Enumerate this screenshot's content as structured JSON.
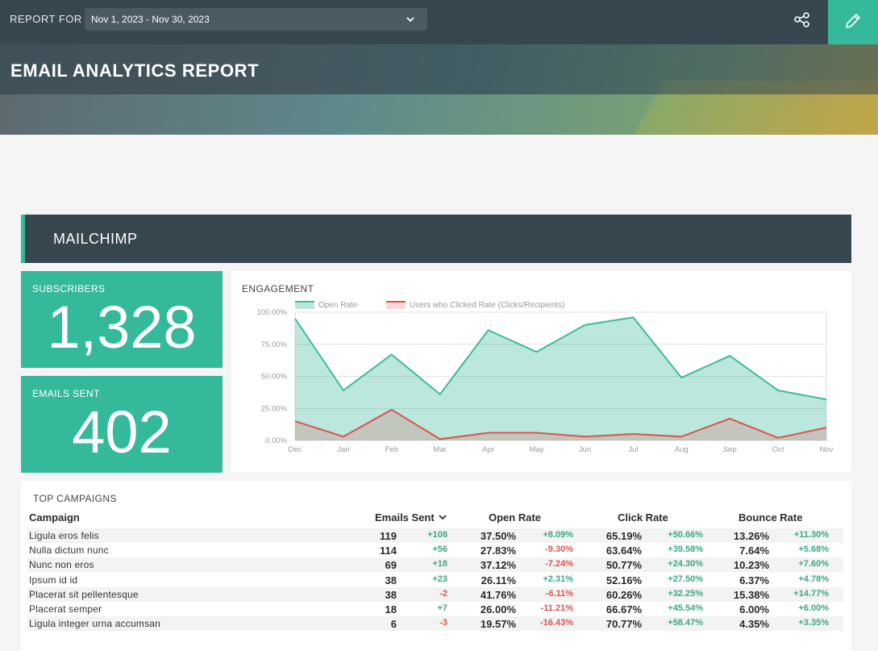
{
  "header": {
    "report_for_label": "REPORT FOR",
    "date_range": "Nov 1, 2023 - Nov 30, 2023",
    "title": "EMAIL ANALYTICS REPORT"
  },
  "section": {
    "title": "MAILCHIMP"
  },
  "kpis": {
    "subscribers": {
      "label": "SUBSCRIBERS",
      "value": "1,328"
    },
    "emails_sent": {
      "label": "EMAILS SENT",
      "value": "402"
    }
  },
  "colors": {
    "accent": "#35b99b",
    "dark": "#364750",
    "series_open": "#3dbb9c",
    "series_click": "#d9534f"
  },
  "engagement": {
    "title": "ENGAGEMENT"
  },
  "chart_data": {
    "type": "area",
    "title": "ENGAGEMENT",
    "categories": [
      "Dec",
      "Jan",
      "Feb",
      "Mar",
      "Apr",
      "May",
      "Jun",
      "Jul",
      "Aug",
      "Sep",
      "Oct",
      "Nov"
    ],
    "y_ticks": [
      "0.00%",
      "25.00%",
      "50.00%",
      "75.00%",
      "100.00%"
    ],
    "ylim": [
      0,
      100
    ],
    "grid": true,
    "legend_position": "top-left",
    "series": [
      {
        "name": "Open Rate",
        "values": [
          95,
          39,
          67,
          36,
          86,
          69,
          90,
          96,
          49,
          66,
          39,
          32
        ]
      },
      {
        "name": "Users who Clicked Rate (Clicks/Recipients)",
        "values": [
          15,
          3,
          24,
          1,
          6,
          6,
          3,
          5,
          3,
          17,
          2,
          10
        ]
      }
    ]
  },
  "campaigns": {
    "title": "TOP CAMPAIGNS",
    "headers": {
      "campaign": "Campaign",
      "emails_sent": "Emails Sent",
      "open_rate": "Open Rate",
      "click_rate": "Click Rate",
      "bounce_rate": "Bounce Rate"
    },
    "rows": [
      {
        "name": "Ligula eros felis",
        "sent": "119",
        "sent_d": "+108",
        "open": "37.50%",
        "open_d": "+8.09%",
        "click": "65.19%",
        "click_d": "+50.66%",
        "bounce": "13.26%",
        "bounce_d": "+11.30%"
      },
      {
        "name": "Nulla dictum nunc",
        "sent": "114",
        "sent_d": "+56",
        "open": "27.83%",
        "open_d": "-9.30%",
        "click": "63.64%",
        "click_d": "+39.58%",
        "bounce": "7.64%",
        "bounce_d": "+5.68%"
      },
      {
        "name": "Nunc non eros",
        "sent": "69",
        "sent_d": "+18",
        "open": "37.12%",
        "open_d": "-7.24%",
        "click": "50.77%",
        "click_d": "+24.30%",
        "bounce": "10.23%",
        "bounce_d": "+7.60%"
      },
      {
        "name": "Ipsum id id",
        "sent": "38",
        "sent_d": "+23",
        "open": "26.11%",
        "open_d": "+2.31%",
        "click": "52.16%",
        "click_d": "+27.50%",
        "bounce": "6.37%",
        "bounce_d": "+4.78%"
      },
      {
        "name": "Placerat sit pellentesque",
        "sent": "38",
        "sent_d": "-2",
        "open": "41.76%",
        "open_d": "-6.11%",
        "click": "60.26%",
        "click_d": "+32.25%",
        "bounce": "15.38%",
        "bounce_d": "+14.77%"
      },
      {
        "name": "Placerat semper",
        "sent": "18",
        "sent_d": "+7",
        "open": "26.00%",
        "open_d": "-11.21%",
        "click": "66.67%",
        "click_d": "+45.54%",
        "bounce": "6.00%",
        "bounce_d": "+6.00%"
      },
      {
        "name": "Ligula integer urna accumsan",
        "sent": "6",
        "sent_d": "-3",
        "open": "19.57%",
        "open_d": "-16.43%",
        "click": "70.77%",
        "click_d": "+58.47%",
        "bounce": "4.35%",
        "bounce_d": "+3.35%"
      }
    ]
  }
}
